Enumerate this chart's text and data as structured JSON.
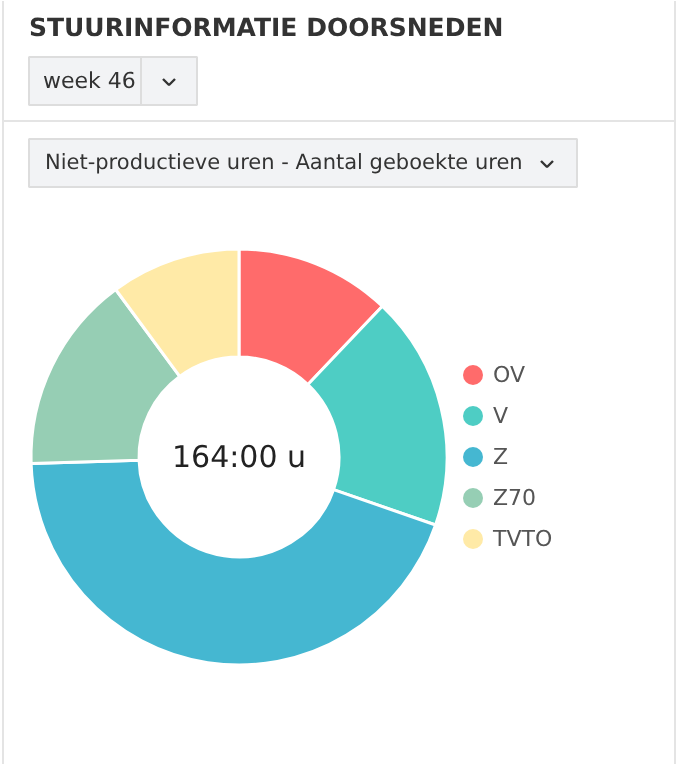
{
  "chart_data": {
    "type": "donut",
    "title": "STUURINFORMATIE DOORSNEDEN",
    "subtitle": "Niet-productieve uren - Aantal geboekte uren",
    "annotations": [
      "week 46",
      "164:00 u"
    ],
    "categories": [
      "OV",
      "V",
      "Z",
      "Z70",
      "TVTO"
    ],
    "values": [
      12.1,
      18.2,
      44.2,
      15.4,
      10.1
    ],
    "colors": [
      "#ff6b6b",
      "#4ecdc4",
      "#45b7d1",
      "#96ceb4",
      "#ffeaa7"
    ],
    "legend": "right"
  }
}
